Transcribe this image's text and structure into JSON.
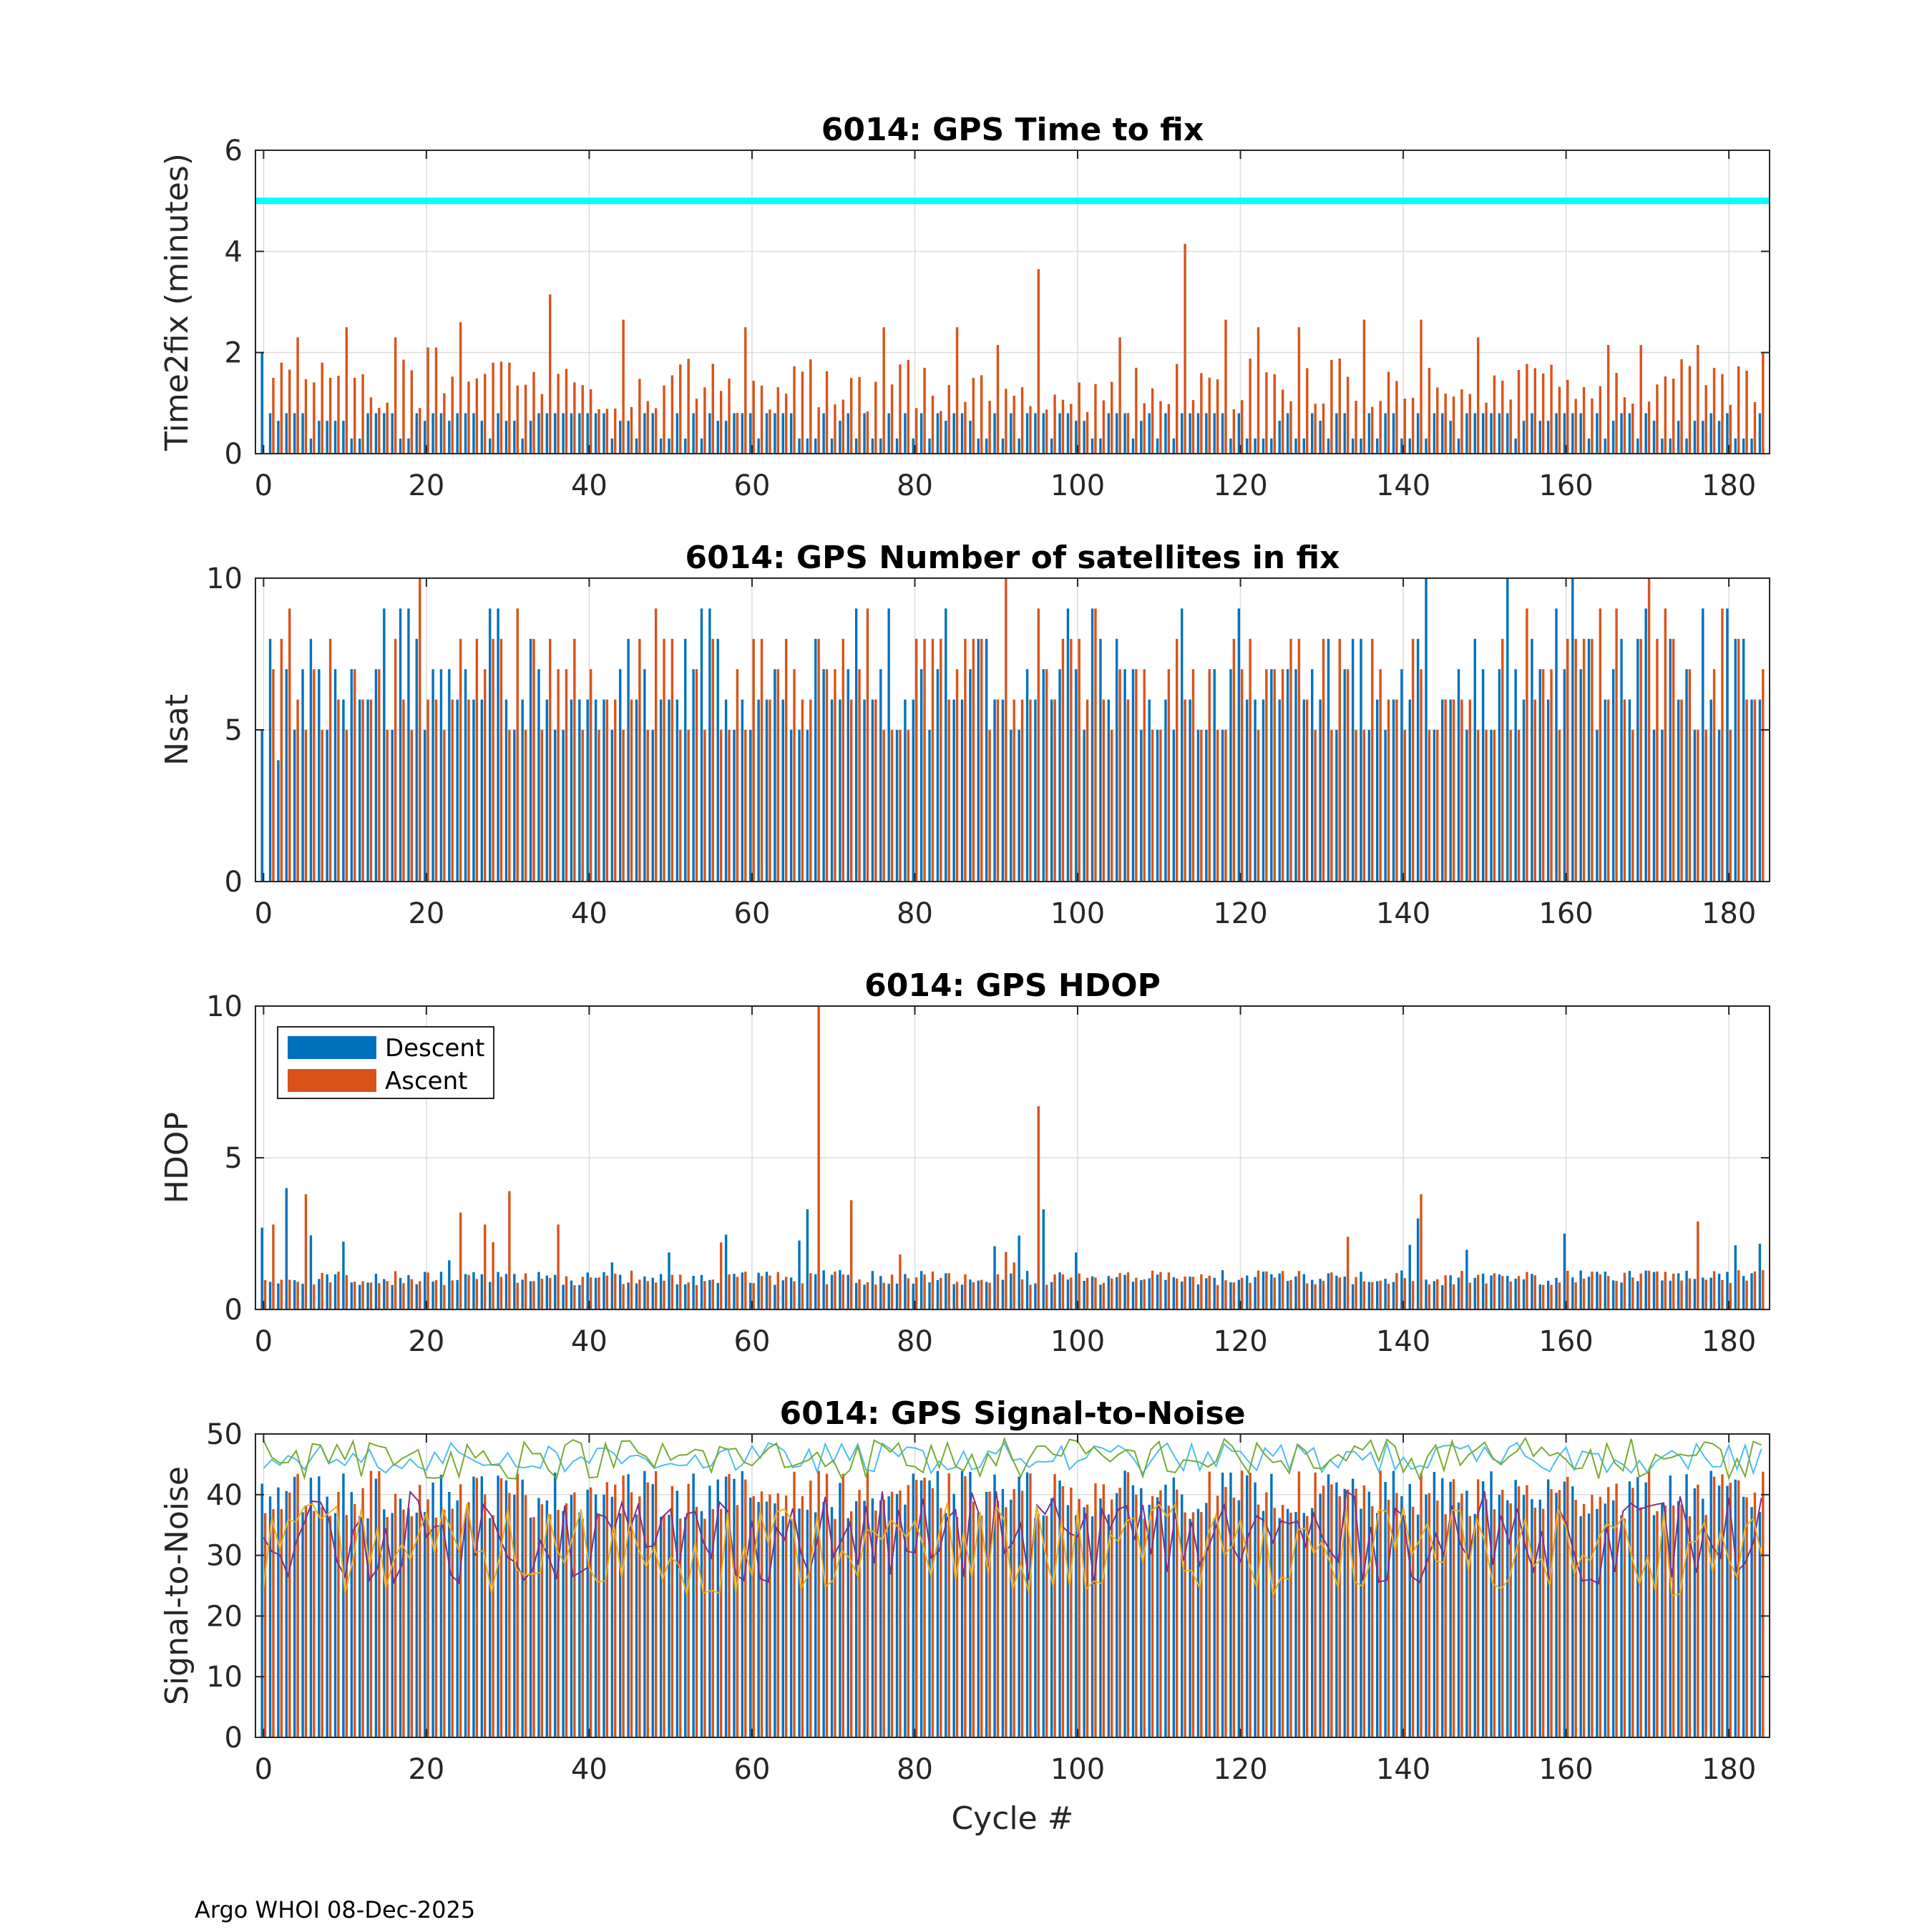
{
  "footer": "Argo WHOI 08-Dec-2025",
  "colors": {
    "descent": "#0072BD",
    "ascent": "#D95319",
    "threshold": "#00FFFF",
    "snr_lines": [
      "#4DBEEE",
      "#77AC30",
      "#7E2F8E",
      "#EDB120"
    ]
  },
  "legend": {
    "descent": "Descent",
    "ascent": "Ascent"
  },
  "chart_data": [
    {
      "type": "bar",
      "title": "6014: GPS Time to fix",
      "xlabel": "",
      "ylabel": "Time2fix (minutes)",
      "xlim": [
        -1,
        185
      ],
      "ylim": [
        0,
        6
      ],
      "yticks": [
        0,
        2,
        4,
        6
      ],
      "xticks": [
        0,
        20,
        40,
        60,
        80,
        100,
        120,
        140,
        160,
        180
      ],
      "threshold": 5,
      "descent_approx": "values mostly 0.3–0.8 min (approximate, per cycle)",
      "ascent_peaks": [
        [
          1,
          1.5
        ],
        [
          2,
          1.8
        ],
        [
          4,
          2.3
        ],
        [
          7,
          1.8
        ],
        [
          8,
          1.5
        ],
        [
          10,
          2.5
        ],
        [
          11,
          1.5
        ],
        [
          16,
          2.3
        ],
        [
          20,
          2.1
        ],
        [
          21,
          2.1
        ],
        [
          24,
          2.6
        ],
        [
          28,
          1.8
        ],
        [
          30,
          1.8
        ],
        [
          35,
          3.15
        ],
        [
          44,
          2.65
        ],
        [
          59,
          2.5
        ],
        [
          76,
          2.5
        ],
        [
          85,
          2.5
        ],
        [
          90,
          2.15
        ],
        [
          95,
          3.65
        ],
        [
          105,
          2.3
        ],
        [
          113,
          4.15
        ],
        [
          118,
          2.65
        ],
        [
          122,
          2.5
        ],
        [
          127,
          2.5
        ],
        [
          135,
          2.65
        ],
        [
          142,
          2.65
        ],
        [
          149,
          2.3
        ],
        [
          165,
          2.15
        ],
        [
          169,
          2.15
        ],
        [
          176,
          2.15
        ],
        [
          184,
          2.0
        ]
      ]
    },
    {
      "type": "bar",
      "title": "6014: GPS Number of satellites in fix",
      "xlabel": "",
      "ylabel": "Nsat",
      "xlim": [
        -1,
        185
      ],
      "ylim": [
        0,
        10
      ],
      "yticks": [
        0,
        5,
        10
      ],
      "xticks": [
        0,
        20,
        40,
        60,
        80,
        100,
        120,
        140,
        160,
        180
      ],
      "note": "per-cycle counts mostly 4–10 (approximate)"
    },
    {
      "type": "bar",
      "title": "6014: GPS HDOP",
      "xlabel": "",
      "ylabel": "HDOP",
      "xlim": [
        -1,
        185
      ],
      "ylim": [
        0,
        10
      ],
      "yticks": [
        0,
        5,
        10
      ],
      "xticks": [
        0,
        20,
        40,
        60,
        80,
        100,
        120,
        140,
        160,
        180
      ],
      "peaks": [
        [
          0,
          2.7,
          "d"
        ],
        [
          1,
          2.8,
          "a"
        ],
        [
          3,
          4.0,
          "d"
        ],
        [
          5,
          3.8,
          "a"
        ],
        [
          24,
          3.2,
          "a"
        ],
        [
          27,
          2.8,
          "a"
        ],
        [
          30,
          3.9,
          "a"
        ],
        [
          36,
          2.8,
          "a"
        ],
        [
          68,
          10.0,
          "a"
        ],
        [
          67,
          3.3,
          "d"
        ],
        [
          72,
          3.6,
          "a"
        ],
        [
          95,
          6.7,
          "a"
        ],
        [
          96,
          3.3,
          "d"
        ],
        [
          142,
          3.0,
          "d"
        ],
        [
          142,
          3.8,
          "a"
        ],
        [
          176,
          2.9,
          "a"
        ]
      ],
      "typical_range": [
        0.8,
        1.3
      ]
    },
    {
      "type": "bar",
      "title": "6014: GPS Signal-to-Noise",
      "xlabel": "Cycle #",
      "ylabel": "Signal-to-Noise",
      "xlim": [
        -1,
        185
      ],
      "ylim": [
        0,
        50
      ],
      "yticks": [
        0,
        10,
        20,
        30,
        40,
        50
      ],
      "xticks": [
        0,
        20,
        40,
        60,
        80,
        100,
        120,
        140,
        160,
        180
      ],
      "bars_range": [
        36,
        44
      ],
      "lines": [
        {
          "name": "max (cyan)",
          "approx_range": [
            43,
            49
          ]
        },
        {
          "name": "max (green)",
          "approx_range": [
            42,
            50
          ]
        },
        {
          "name": "mean (purple)",
          "approx_range": [
            24,
            42
          ]
        },
        {
          "name": "min (yellow)",
          "approx_range": [
            22,
            40
          ]
        }
      ]
    }
  ]
}
